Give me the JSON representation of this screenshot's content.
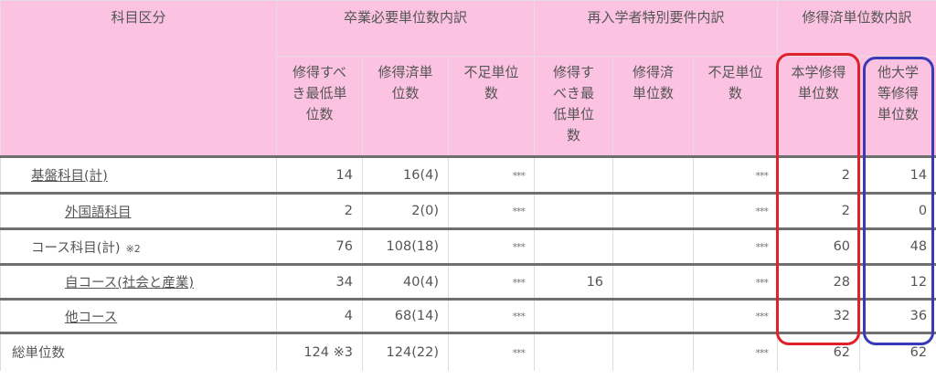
{
  "header": {
    "category": "科目区分",
    "group_graduation": "卒業必要単位数内訳",
    "group_readmission": "再入学者特別要件内訳",
    "group_breakdown": "修得済単位数内訳",
    "sub": [
      "修得すべき最低単位数",
      "修得済単位数",
      "不足単位数",
      "修得すべき最低単位数",
      "修得済単位数",
      "不足単位数",
      "本学修得単位数",
      "他大学等修得単位数"
    ]
  },
  "rows": [
    {
      "label": "基盤科目(計)",
      "note": "",
      "link": true,
      "indent": false,
      "cells": [
        "14",
        "16(4)",
        "***",
        "",
        "",
        "***",
        "2",
        "14"
      ]
    },
    {
      "label": "外国語科目",
      "note": "",
      "link": true,
      "indent": true,
      "cells": [
        "2",
        "2(0)",
        "***",
        "",
        "",
        "***",
        "2",
        "0"
      ]
    },
    {
      "label": "コース科目(計)",
      "note": "※2",
      "link": false,
      "indent": false,
      "cells": [
        "76",
        "108(18)",
        "***",
        "",
        "",
        "***",
        "60",
        "48"
      ]
    },
    {
      "label": "自コース(社会と産業)",
      "note": "",
      "link": true,
      "indent": true,
      "cells": [
        "34",
        "40(4)",
        "***",
        "16",
        "",
        "***",
        "28",
        "12"
      ]
    },
    {
      "label": "他コース",
      "note": "",
      "link": true,
      "indent": true,
      "cells": [
        "4",
        "68(14)",
        "***",
        "",
        "",
        "***",
        "32",
        "36"
      ]
    },
    {
      "label": "総単位数",
      "note": "",
      "link": false,
      "indent": false,
      "total": true,
      "cells": [
        "124 ※3",
        "124(22)",
        "***",
        "",
        "",
        "***",
        "62",
        "62"
      ]
    }
  ],
  "highlights": {
    "red": "#e0202a",
    "blue": "#3a3ab8"
  },
  "colors": {
    "header_bg": "#fbc2e1"
  }
}
